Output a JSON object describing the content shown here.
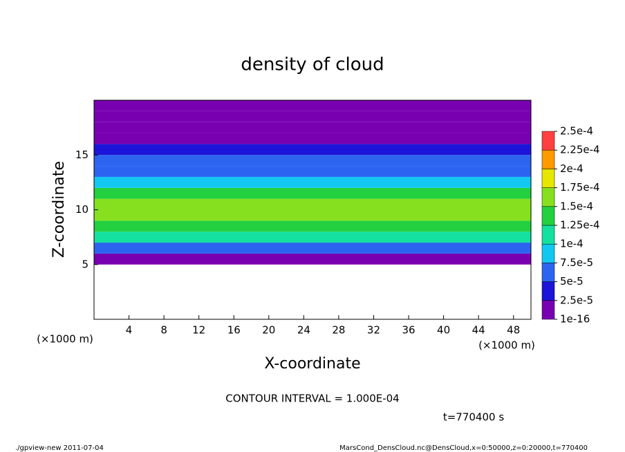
{
  "chart_data": {
    "type": "heatmap",
    "title": "density of cloud",
    "x_label": "X-coordinate",
    "y_label": "Z-coordinate",
    "x_unit": "(×1000 m)",
    "y_unit": "(×1000 m)",
    "contour_note": "CONTOUR INTERVAL = 1.000E-04",
    "time_label": "t=770400 s",
    "footer_left": "./gpview-new  2011-07-04",
    "footer_right": "MarsCond_DensCloud.nc@DensCloud,x=0:50000,z=0:20000,t=770400",
    "xlim": [
      0,
      50
    ],
    "xticks": [
      4,
      8,
      12,
      16,
      20,
      24,
      28,
      32,
      36,
      40,
      44,
      48
    ],
    "ylim": [
      0,
      20
    ],
    "yticks": [
      5,
      10,
      15
    ],
    "zbins": [
      5,
      6,
      7,
      8,
      9,
      10,
      11,
      12,
      13,
      14,
      15,
      16,
      17,
      18,
      19,
      20
    ],
    "values": [
      3e-06,
      6e-05,
      0.000105,
      0.000145,
      0.00017,
      0.000165,
      0.00013,
      9e-05,
      7e-05,
      5e-05,
      3.5e-05,
      2e-05,
      1e-05,
      8e-06,
      1e-05
    ],
    "colorbar_ticks": [
      1e-16,
      {
        "value": 2.5e-05,
        "label": "2.5e-5"
      },
      {
        "value": 5e-05,
        "label": "5e-5"
      },
      {
        "value": 7.5e-05,
        "label": "7.5e-5"
      },
      {
        "value": 0.0001,
        "label": "1e-4"
      },
      {
        "value": 0.000125,
        "label": "1.25e-4"
      },
      {
        "value": 0.00015,
        "label": "1.5e-4"
      },
      {
        "value": 0.000175,
        "label": "1.75e-4"
      },
      {
        "value": 0.0002,
        "label": "2e-4"
      },
      {
        "value": 0.000225,
        "label": "2.25e-4"
      },
      {
        "value": 0.00025,
        "label": "2.5e-4"
      }
    ],
    "colors": [
      "#7800b0",
      "#1c14d8",
      "#2c64f0",
      "#12c8f0",
      "#14e0a0",
      "#22d040",
      "#86e020",
      "#e6e600",
      "#ff9a00",
      "#ff4040"
    ]
  }
}
